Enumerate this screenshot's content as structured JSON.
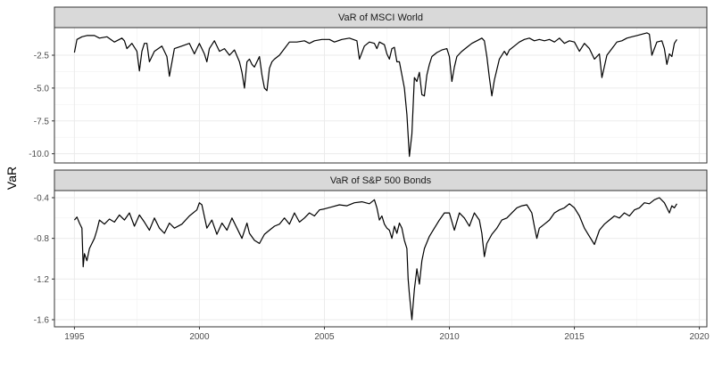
{
  "chart_data": {
    "type": "line",
    "ylabel": "VaR",
    "xlabel": "",
    "x_ticks": [
      "1995",
      "2000",
      "2005",
      "2010",
      "2015",
      "2020"
    ],
    "xlim": [
      1994.2,
      2020.3
    ],
    "grid": true,
    "legend": "none",
    "line_color": "#000000",
    "panels": [
      {
        "title": "VaR of MSCI World",
        "ylim": [
          -10.7,
          -0.4
        ],
        "y_ticks": [
          "-2.5",
          "-5.0",
          "-7.5",
          "-10.0"
        ],
        "y_tick_values": [
          -2.5,
          -5.0,
          -7.5,
          -10.0
        ],
        "series": {
          "x": [
            1995.0,
            1995.1,
            1995.3,
            1995.5,
            1995.8,
            1996.0,
            1996.3,
            1996.6,
            1996.9,
            1997.0,
            1997.1,
            1997.3,
            1997.5,
            1997.6,
            1997.7,
            1997.8,
            1997.9,
            1998.0,
            1998.2,
            1998.5,
            1998.7,
            1998.8,
            1999.0,
            1999.3,
            1999.6,
            1999.8,
            2000.0,
            2000.2,
            2000.3,
            2000.4,
            2000.6,
            2000.8,
            2001.0,
            2001.2,
            2001.4,
            2001.6,
            2001.7,
            2001.8,
            2001.9,
            2002.0,
            2002.1,
            2002.2,
            2002.4,
            2002.5,
            2002.6,
            2002.7,
            2002.8,
            2002.9,
            2003.0,
            2003.2,
            2003.4,
            2003.6,
            2003.9,
            2004.2,
            2004.4,
            2004.6,
            2004.9,
            2005.2,
            2005.4,
            2005.7,
            2006.0,
            2006.3,
            2006.4,
            2006.6,
            2006.8,
            2007.0,
            2007.1,
            2007.2,
            2007.4,
            2007.5,
            2007.6,
            2007.7,
            2007.8,
            2007.9,
            2008.0,
            2008.1,
            2008.2,
            2008.3,
            2008.4,
            2008.5,
            2008.6,
            2008.7,
            2008.8,
            2008.9,
            2009.0,
            2009.1,
            2009.2,
            2009.3,
            2009.5,
            2009.7,
            2009.9,
            2010.0,
            2010.1,
            2010.2,
            2010.3,
            2010.4,
            2010.5,
            2010.7,
            2010.9,
            2011.1,
            2011.3,
            2011.4,
            2011.5,
            2011.6,
            2011.7,
            2011.8,
            2012.0,
            2012.2,
            2012.3,
            2012.4,
            2012.6,
            2012.8,
            2013.0,
            2013.2,
            2013.4,
            2013.6,
            2013.8,
            2014.0,
            2014.2,
            2014.4,
            2014.6,
            2014.8,
            2015.0,
            2015.2,
            2015.4,
            2015.6,
            2015.8,
            2016.0,
            2016.1,
            2016.3,
            2016.5,
            2016.7,
            2016.9,
            2017.1,
            2017.3,
            2017.5,
            2017.7,
            2017.9,
            2018.0,
            2018.1,
            2018.3,
            2018.5,
            2018.6,
            2018.7,
            2018.8,
            2018.9,
            2019.0,
            2019.1
          ],
          "y": [
            -2.3,
            -1.3,
            -1.1,
            -1.0,
            -1.0,
            -1.2,
            -1.1,
            -1.5,
            -1.2,
            -1.4,
            -2.0,
            -1.6,
            -2.2,
            -3.7,
            -2.2,
            -1.6,
            -1.6,
            -3.0,
            -2.2,
            -1.8,
            -2.6,
            -4.1,
            -2.0,
            -1.8,
            -1.6,
            -2.4,
            -1.6,
            -2.4,
            -3.0,
            -2.0,
            -1.4,
            -2.2,
            -2.0,
            -2.5,
            -2.1,
            -3.0,
            -3.8,
            -5.0,
            -3.0,
            -2.8,
            -3.2,
            -3.4,
            -2.6,
            -4.0,
            -5.0,
            -5.2,
            -3.5,
            -3.0,
            -2.8,
            -2.5,
            -2.0,
            -1.5,
            -1.5,
            -1.4,
            -1.6,
            -1.4,
            -1.3,
            -1.3,
            -1.5,
            -1.3,
            -1.2,
            -1.4,
            -2.8,
            -1.8,
            -1.5,
            -1.6,
            -2.0,
            -1.5,
            -1.7,
            -2.4,
            -2.8,
            -2.0,
            -1.9,
            -3.0,
            -3.0,
            -4.0,
            -5.0,
            -7.0,
            -10.2,
            -8.5,
            -4.2,
            -4.5,
            -3.8,
            -5.5,
            -5.6,
            -4.0,
            -3.2,
            -2.6,
            -2.3,
            -2.1,
            -2.0,
            -2.6,
            -4.5,
            -3.4,
            -2.6,
            -2.4,
            -2.2,
            -1.9,
            -1.6,
            -1.4,
            -1.2,
            -1.4,
            -2.6,
            -4.2,
            -5.6,
            -4.4,
            -2.8,
            -2.2,
            -2.5,
            -2.1,
            -1.8,
            -1.5,
            -1.3,
            -1.2,
            -1.4,
            -1.3,
            -1.4,
            -1.3,
            -1.5,
            -1.2,
            -1.6,
            -1.4,
            -1.5,
            -2.2,
            -1.6,
            -2.0,
            -2.8,
            -2.4,
            -4.2,
            -2.5,
            -2.0,
            -1.5,
            -1.4,
            -1.2,
            -1.1,
            -1.0,
            -0.9,
            -0.8,
            -0.9,
            -2.5,
            -1.5,
            -1.4,
            -2.0,
            -3.2,
            -2.4,
            -2.6,
            -1.6,
            -1.3
          ]
        }
      },
      {
        "title": "VaR of S&P 500 Bonds",
        "ylim": [
          -1.67,
          -0.33
        ],
        "y_ticks": [
          "-0.4",
          "-0.8",
          "-1.2",
          "-1.6"
        ],
        "y_tick_values": [
          -0.4,
          -0.8,
          -1.2,
          -1.6
        ],
        "series": {
          "x": [
            1995.0,
            1995.1,
            1995.2,
            1995.3,
            1995.35,
            1995.4,
            1995.5,
            1995.6,
            1995.7,
            1995.8,
            1995.9,
            1996.0,
            1996.2,
            1996.4,
            1996.6,
            1996.8,
            1997.0,
            1997.2,
            1997.4,
            1997.6,
            1997.8,
            1998.0,
            1998.2,
            1998.4,
            1998.6,
            1998.8,
            1999.0,
            1999.3,
            1999.6,
            1999.9,
            2000.0,
            2000.1,
            2000.3,
            2000.5,
            2000.7,
            2000.9,
            2001.1,
            2001.3,
            2001.5,
            2001.7,
            2001.9,
            2002.0,
            2002.2,
            2002.4,
            2002.6,
            2002.8,
            2003.0,
            2003.2,
            2003.4,
            2003.6,
            2003.8,
            2004.0,
            2004.2,
            2004.4,
            2004.6,
            2004.8,
            2005.0,
            2005.3,
            2005.6,
            2005.9,
            2006.2,
            2006.5,
            2006.8,
            2007.0,
            2007.1,
            2007.2,
            2007.3,
            2007.4,
            2007.5,
            2007.6,
            2007.7,
            2007.8,
            2007.9,
            2008.0,
            2008.1,
            2008.2,
            2008.3,
            2008.35,
            2008.4,
            2008.5,
            2008.6,
            2008.7,
            2008.8,
            2008.9,
            2009.0,
            2009.2,
            2009.4,
            2009.6,
            2009.8,
            2010.0,
            2010.2,
            2010.4,
            2010.6,
            2010.8,
            2011.0,
            2011.2,
            2011.3,
            2011.4,
            2011.5,
            2011.7,
            2011.9,
            2012.1,
            2012.3,
            2012.5,
            2012.7,
            2012.9,
            2013.1,
            2013.3,
            2013.4,
            2013.5,
            2013.6,
            2013.8,
            2014.0,
            2014.2,
            2014.4,
            2014.6,
            2014.8,
            2015.0,
            2015.2,
            2015.4,
            2015.6,
            2015.8,
            2016.0,
            2016.2,
            2016.4,
            2016.6,
            2016.8,
            2017.0,
            2017.2,
            2017.4,
            2017.6,
            2017.8,
            2018.0,
            2018.2,
            2018.4,
            2018.6,
            2018.7,
            2018.8,
            2018.9,
            2019.0,
            2019.1
          ],
          "y": [
            -0.62,
            -0.59,
            -0.65,
            -0.7,
            -1.08,
            -0.95,
            -1.02,
            -0.9,
            -0.85,
            -0.8,
            -0.72,
            -0.62,
            -0.66,
            -0.61,
            -0.64,
            -0.57,
            -0.62,
            -0.55,
            -0.68,
            -0.57,
            -0.64,
            -0.72,
            -0.6,
            -0.7,
            -0.75,
            -0.65,
            -0.7,
            -0.66,
            -0.58,
            -0.52,
            -0.45,
            -0.47,
            -0.7,
            -0.62,
            -0.76,
            -0.65,
            -0.72,
            -0.6,
            -0.7,
            -0.8,
            -0.65,
            -0.75,
            -0.82,
            -0.85,
            -0.76,
            -0.72,
            -0.68,
            -0.66,
            -0.6,
            -0.66,
            -0.55,
            -0.64,
            -0.6,
            -0.55,
            -0.58,
            -0.52,
            -0.51,
            -0.49,
            -0.47,
            -0.48,
            -0.45,
            -0.44,
            -0.46,
            -0.42,
            -0.5,
            -0.62,
            -0.58,
            -0.66,
            -0.7,
            -0.72,
            -0.8,
            -0.68,
            -0.75,
            -0.65,
            -0.7,
            -0.82,
            -0.9,
            -1.2,
            -1.35,
            -1.6,
            -1.3,
            -1.1,
            -1.25,
            -1.02,
            -0.9,
            -0.78,
            -0.7,
            -0.62,
            -0.55,
            -0.55,
            -0.72,
            -0.55,
            -0.6,
            -0.68,
            -0.55,
            -0.62,
            -0.75,
            -0.98,
            -0.85,
            -0.76,
            -0.7,
            -0.62,
            -0.6,
            -0.55,
            -0.5,
            -0.48,
            -0.47,
            -0.55,
            -0.68,
            -0.8,
            -0.7,
            -0.66,
            -0.62,
            -0.55,
            -0.52,
            -0.5,
            -0.46,
            -0.5,
            -0.58,
            -0.7,
            -0.78,
            -0.86,
            -0.72,
            -0.66,
            -0.62,
            -0.58,
            -0.6,
            -0.55,
            -0.58,
            -0.52,
            -0.5,
            -0.45,
            -0.46,
            -0.42,
            -0.4,
            -0.45,
            -0.5,
            -0.55,
            -0.48,
            -0.5,
            -0.46
          ]
        }
      }
    ]
  }
}
